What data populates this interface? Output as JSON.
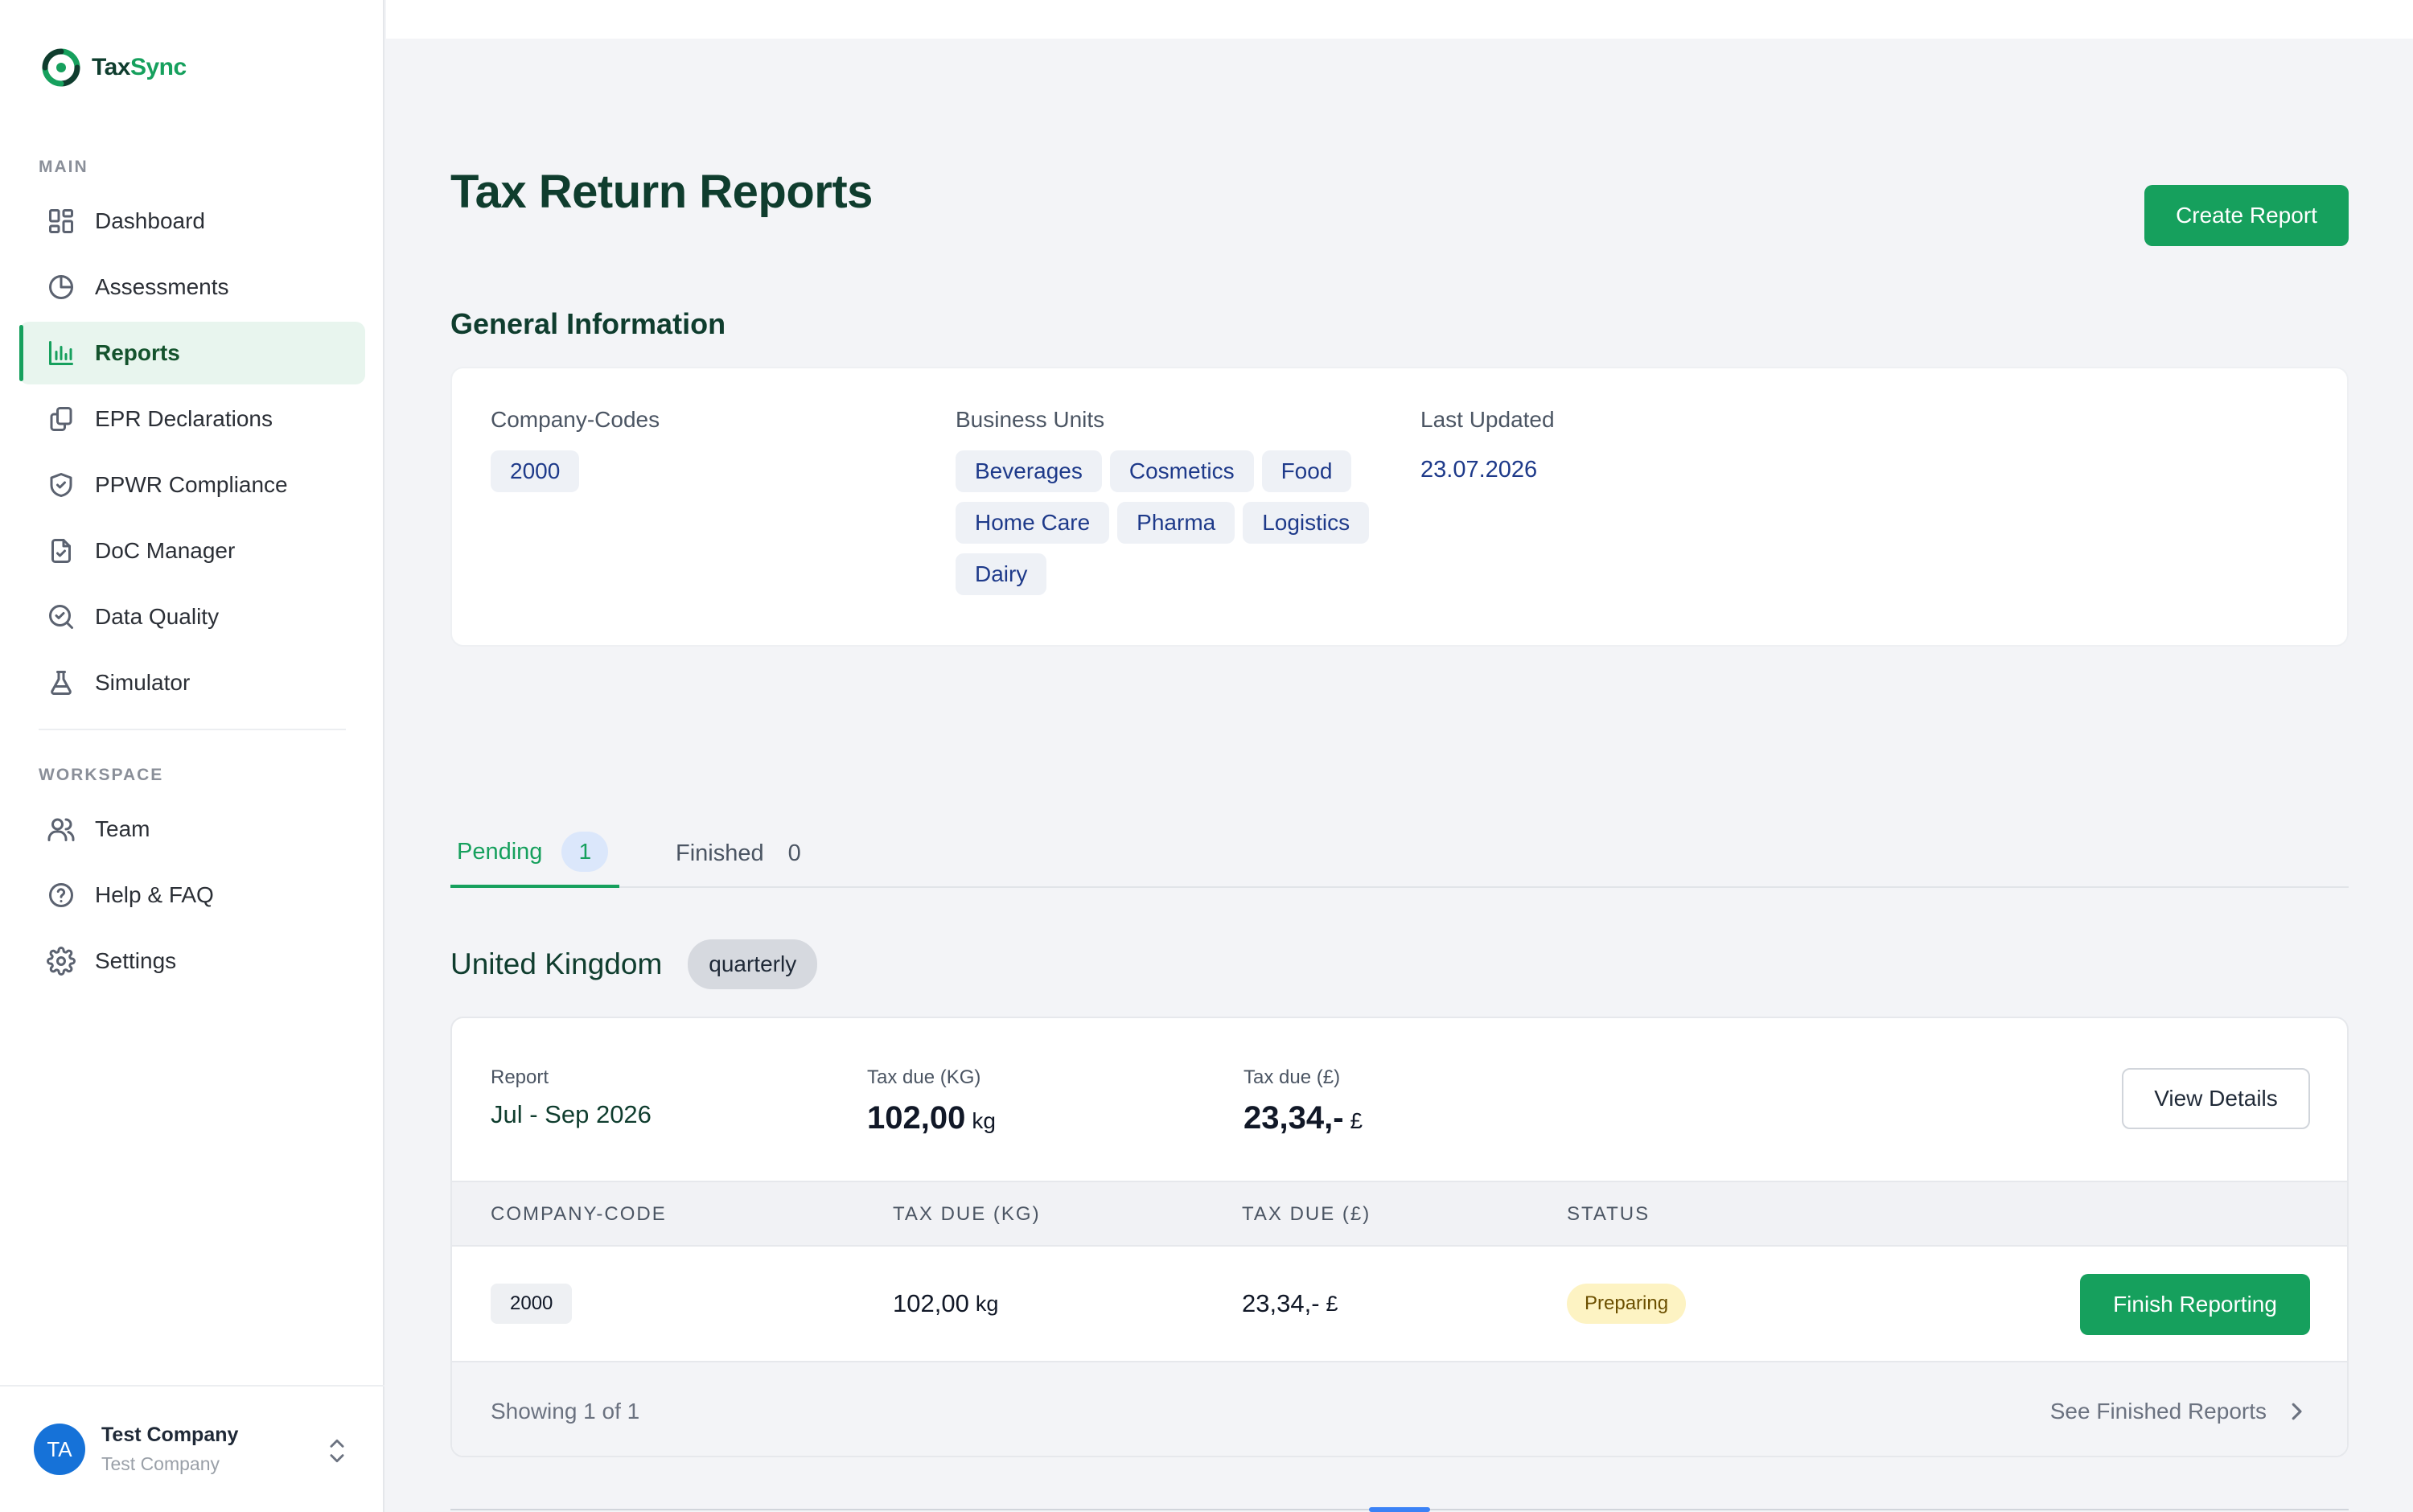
{
  "app": {
    "logo_text_main": "Tax",
    "logo_text_accent": "Sync"
  },
  "sidebar": {
    "main_label": "MAIN",
    "workspace_label": "WORKSPACE",
    "main_items": [
      {
        "label": "Dashboard",
        "icon": "dashboard-icon"
      },
      {
        "label": "Assessments",
        "icon": "pie-chart-icon"
      },
      {
        "label": "Reports",
        "icon": "bar-chart-icon",
        "active": true
      },
      {
        "label": "EPR Declarations",
        "icon": "documents-icon"
      },
      {
        "label": "PPWR Compliance",
        "icon": "shield-check-icon"
      },
      {
        "label": "DoC Manager",
        "icon": "file-check-icon"
      },
      {
        "label": "Data Quality",
        "icon": "search-check-icon"
      },
      {
        "label": "Simulator",
        "icon": "flask-icon"
      }
    ],
    "workspace_items": [
      {
        "label": "Team",
        "icon": "users-icon"
      },
      {
        "label": "Help & FAQ",
        "icon": "help-circle-icon"
      },
      {
        "label": "Settings",
        "icon": "gear-icon"
      }
    ],
    "user": {
      "initials": "TA",
      "name": "Test Company",
      "subtitle": "Test Company"
    }
  },
  "page": {
    "title": "Tax Return Reports",
    "create_button": "Create Report",
    "general_info_title": "General Information"
  },
  "general_info": {
    "company_codes_label": "Company-Codes",
    "company_codes": [
      "2000"
    ],
    "business_units_label": "Business Units",
    "business_units": [
      "Beverages",
      "Cosmetics",
      "Food",
      "Home Care",
      "Pharma",
      "Logistics",
      "Dairy"
    ],
    "last_updated_label": "Last Updated",
    "last_updated": "23.07.2026"
  },
  "tabs": {
    "pending_label": "Pending",
    "pending_count": "1",
    "finished_label": "Finished",
    "finished_count": "0"
  },
  "country_group": {
    "name": "United Kingdom",
    "frequency": "quarterly"
  },
  "report": {
    "report_label": "Report",
    "period": "Jul - Sep 2026",
    "tax_kg_label": "Tax due (KG)",
    "tax_kg_value": "102,00",
    "tax_kg_unit": "kg",
    "tax_gbp_label": "Tax due (£)",
    "tax_gbp_value": "23,34,-",
    "tax_gbp_unit": "£",
    "view_details": "View Details"
  },
  "table": {
    "headers": [
      "COMPANY-CODE",
      "TAX DUE (KG)",
      "TAX DUE (£)",
      "STATUS"
    ],
    "rows": [
      {
        "company_code": "2000",
        "tax_kg": "102,00",
        "tax_kg_unit": "kg",
        "tax_gbp": "23,34,-",
        "tax_gbp_unit": "£",
        "status": "Preparing",
        "action": "Finish Reporting"
      }
    ],
    "showing": "Showing 1 of 1",
    "see_finished": "See Finished Reports"
  },
  "colors": {
    "brand": "#16a05d",
    "brand_dark": "#0f3d2e",
    "status_preparing_bg": "#fdf3c3"
  }
}
